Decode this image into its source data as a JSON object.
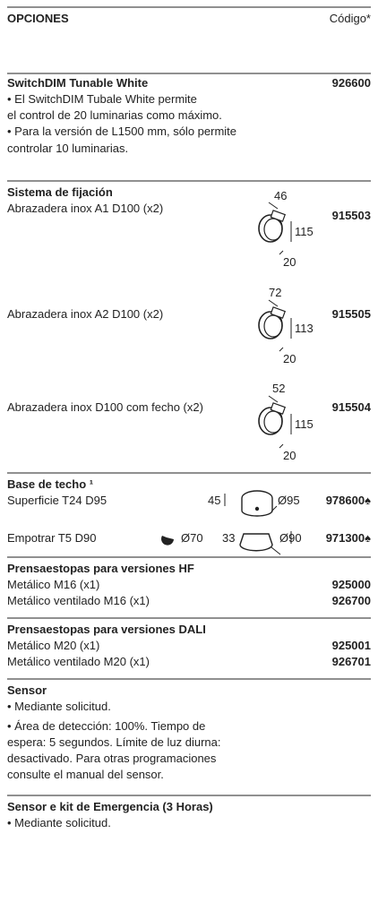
{
  "header": {
    "title": "OPCIONES",
    "code_label": "Código*"
  },
  "sections": [
    {
      "title": "SwitchDIM Tunable White",
      "code": "926600",
      "lines": [
        "• El SwitchDIM Tubale White permite",
        " el control de 20 luminarias como máximo.",
        "• Para la versión de L1500 mm, sólo permite",
        "controlar 10 luminarias."
      ]
    },
    {
      "title": "Sistema de fijación",
      "items": [
        {
          "label": "Abrazadera inox A1 D100 (x2)",
          "code": "915503",
          "dims": [
            "46",
            "115",
            "20"
          ]
        },
        {
          "label": "Abrazadera inox A2 D100 (x2)",
          "code": "915505",
          "dims": [
            "72",
            "113",
            "20"
          ]
        },
        {
          "label": "Abrazadera inox D100 com fecho (x2)",
          "code": "915504",
          "dims": [
            "52",
            "115",
            "20"
          ]
        }
      ]
    },
    {
      "title": "Base de techo ¹",
      "items": [
        {
          "label": "Superficie T24 D95",
          "code": "978600♠",
          "dims": [
            "45",
            "Ø95"
          ]
        },
        {
          "label": "Empotrar T5 D90",
          "code": "971300♠",
          "dims": [
            "Ø70",
            "33",
            "Ø90"
          ]
        }
      ]
    },
    {
      "title": "Prensaestopas para versiones HF",
      "items": [
        {
          "label": "Metálico M16 (x1)",
          "code": "925000"
        },
        {
          "label": "Metálico ventilado M16 (x1)",
          "code": "926700"
        }
      ]
    },
    {
      "title": "Prensaestopas para versiones DALI",
      "items": [
        {
          "label": "Metálico M20 (x1)",
          "code": "925001"
        },
        {
          "label": "Metálico ventilado M20 (x1)",
          "code": "926701"
        }
      ]
    },
    {
      "title": "Sensor",
      "lines": [
        "• Mediante solicitud.",
        "• Área de detección: 100%. Tiempo de",
        "espera: 5 segundos. Límite de luz diurna:",
        "desactivado. Para otras programaciones",
        "consulte el manual del sensor."
      ]
    },
    {
      "title": "Sensor e kit de Emergencia (3 Horas)",
      "lines": [
        "• Mediante solicitud."
      ]
    }
  ]
}
